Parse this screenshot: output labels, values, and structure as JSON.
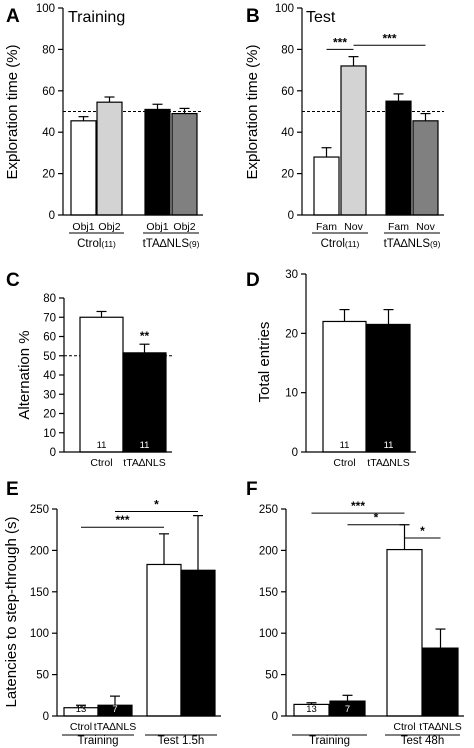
{
  "chart_data": [
    {
      "type": "bar",
      "panel": "A",
      "title": "Training",
      "ylabel": "Exploration time (%)",
      "ylim": [
        0,
        100
      ],
      "yticks": [
        0,
        20,
        40,
        60,
        80,
        100
      ],
      "categories": [
        "Obj1",
        "Obj2",
        "Obj1",
        "Obj2"
      ],
      "values": [
        45.5,
        54.5,
        51,
        49
      ],
      "errors": [
        2,
        2.5,
        2.5,
        2.5
      ],
      "colors": [
        "#ffffff",
        "#d3d3d3",
        "#000000",
        "#808080"
      ],
      "groups": [
        {
          "label": "Ctrol",
          "n": "(11)",
          "members": [
            0,
            1
          ]
        },
        {
          "label": "tTA∆NLS",
          "n": "(9)",
          "members": [
            2,
            3
          ]
        }
      ],
      "reference_line": 50,
      "significance": []
    },
    {
      "type": "bar",
      "panel": "B",
      "title": "Test",
      "ylabel": "Exploration time (%)",
      "ylim": [
        0,
        100
      ],
      "yticks": [
        0,
        20,
        40,
        60,
        80,
        100
      ],
      "categories": [
        "Fam",
        "Nov",
        "Fam",
        "Nov"
      ],
      "values": [
        28,
        72,
        55,
        45.5
      ],
      "errors": [
        4.5,
        4.5,
        3.5,
        3.5
      ],
      "colors": [
        "#ffffff",
        "#d3d3d3",
        "#000000",
        "#808080"
      ],
      "groups": [
        {
          "label": "Ctrol",
          "n": "(11)",
          "members": [
            0,
            1
          ]
        },
        {
          "label": "tTA∆NLS",
          "n": "(9)",
          "members": [
            2,
            3
          ]
        }
      ],
      "reference_line": 50,
      "significance": [
        {
          "from": 0,
          "to": 1,
          "y": 80,
          "label": "***"
        },
        {
          "from": 1,
          "to": 3,
          "y": 82,
          "label": "***"
        }
      ]
    },
    {
      "type": "bar",
      "panel": "C",
      "title": "",
      "ylabel": "Alternation %",
      "ylim": [
        0,
        80
      ],
      "yticks": [
        0,
        10,
        20,
        30,
        40,
        50,
        60,
        70,
        80
      ],
      "categories": [
        "Ctrol",
        "tTA∆NLS"
      ],
      "values": [
        70,
        51.5
      ],
      "errors": [
        3,
        4.5
      ],
      "colors": [
        "#ffffff",
        "#000000"
      ],
      "n_labels": [
        "11",
        "11"
      ],
      "reference_line": 50,
      "significance": [
        {
          "bar": 1,
          "label": "**"
        }
      ]
    },
    {
      "type": "bar",
      "panel": "D",
      "title": "",
      "ylabel": "Total entries",
      "ylim": [
        0,
        30
      ],
      "yticks": [
        0,
        10,
        20,
        30
      ],
      "categories": [
        "Ctrol",
        "tTA∆NLS"
      ],
      "values": [
        22,
        21.5
      ],
      "errors": [
        2,
        2.5
      ],
      "colors": [
        "#ffffff",
        "#000000"
      ],
      "n_labels": [
        "11",
        "11"
      ],
      "significance": []
    },
    {
      "type": "bar",
      "panel": "E",
      "title": "",
      "ylabel": "Latencies to step-through (s)",
      "ylim": [
        0,
        250
      ],
      "yticks": [
        0,
        50,
        100,
        150,
        200,
        250
      ],
      "categories": [
        "Ctrol",
        "tTA∆NLS",
        "",
        ""
      ],
      "values": [
        10,
        13,
        183,
        176
      ],
      "errors": [
        3,
        11,
        37,
        66
      ],
      "colors": [
        "#ffffff",
        "#000000",
        "#ffffff",
        "#000000"
      ],
      "n_labels": [
        "13",
        "7",
        "",
        ""
      ],
      "groups": [
        {
          "label": "Training",
          "members": [
            0,
            1
          ]
        },
        {
          "label": "Test 1.5h",
          "members": [
            2,
            3
          ]
        }
      ],
      "significance": [
        {
          "from": 0,
          "to": 2,
          "y": 228,
          "label": "***"
        },
        {
          "from": 1,
          "to": 3,
          "y": 247,
          "label": "*"
        }
      ]
    },
    {
      "type": "bar",
      "panel": "F",
      "title": "",
      "ylabel": "",
      "ylim": [
        0,
        250
      ],
      "yticks": [
        0,
        50,
        100,
        150,
        200,
        250
      ],
      "categories": [
        "",
        "",
        "Ctrol",
        "tTA∆NLS"
      ],
      "values": [
        14,
        18,
        201,
        82
      ],
      "errors": [
        2,
        7,
        30,
        23
      ],
      "colors": [
        "#ffffff",
        "#000000",
        "#ffffff",
        "#000000"
      ],
      "n_labels": [
        "13",
        "7",
        "",
        ""
      ],
      "groups": [
        {
          "label": "Training",
          "members": [
            0,
            1
          ]
        },
        {
          "label": "Test 48h",
          "members": [
            2,
            3
          ]
        }
      ],
      "significance": [
        {
          "from": 0,
          "to": 2,
          "y": 245,
          "label": "***"
        },
        {
          "from": 1,
          "to": 2,
          "y": 231,
          "label": "*"
        },
        {
          "from": 2,
          "to": 3,
          "y": 215,
          "label": "*"
        }
      ]
    }
  ]
}
